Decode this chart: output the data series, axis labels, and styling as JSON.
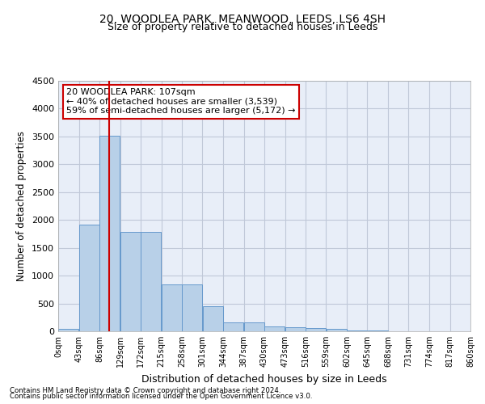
{
  "title": "20, WOODLEA PARK, MEANWOOD, LEEDS, LS6 4SH",
  "subtitle": "Size of property relative to detached houses in Leeds",
  "xlabel": "Distribution of detached houses by size in Leeds",
  "ylabel": "Number of detached properties",
  "annotation_line1": "20 WOODLEA PARK: 107sqm",
  "annotation_line2": "← 40% of detached houses are smaller (3,539)",
  "annotation_line3": "59% of semi-detached houses are larger (5,172) →",
  "property_size_sqm": 107,
  "bin_width": 43,
  "bins": [
    0,
    43,
    86,
    129,
    172,
    215,
    258,
    301,
    344,
    387,
    430,
    473,
    516,
    559,
    602,
    645,
    688,
    731,
    774,
    817,
    860
  ],
  "bin_labels": [
    "0sqm",
    "43sqm",
    "86sqm",
    "129sqm",
    "172sqm",
    "215sqm",
    "258sqm",
    "301sqm",
    "344sqm",
    "387sqm",
    "430sqm",
    "473sqm",
    "516sqm",
    "559sqm",
    "602sqm",
    "645sqm",
    "688sqm",
    "731sqm",
    "774sqm",
    "817sqm",
    "860sqm"
  ],
  "bar_values": [
    50,
    1920,
    3510,
    1780,
    1780,
    840,
    840,
    455,
    160,
    155,
    90,
    75,
    55,
    50,
    20,
    10,
    5,
    5,
    5,
    5
  ],
  "bar_color": "#b8d0e8",
  "bar_edgecolor": "#6699cc",
  "vline_x": 107,
  "vline_color": "#cc0000",
  "ylim": [
    0,
    4500
  ],
  "yticks": [
    0,
    500,
    1000,
    1500,
    2000,
    2500,
    3000,
    3500,
    4000,
    4500
  ],
  "grid_color": "#c0c8d8",
  "bg_color": "#e8eef8",
  "annotation_box_color": "#cc0000",
  "title_fontsize": 10,
  "subtitle_fontsize": 9,
  "footer_line1": "Contains HM Land Registry data © Crown copyright and database right 2024.",
  "footer_line2": "Contains public sector information licensed under the Open Government Licence v3.0."
}
